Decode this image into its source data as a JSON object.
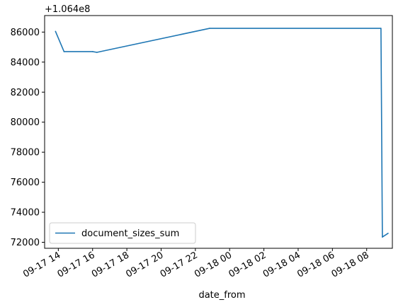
{
  "chart_data": {
    "type": "line",
    "title": "",
    "xlabel": "date_from",
    "ylabel": "",
    "offset_text": "+1.064e8",
    "offset_value": 106400000,
    "legend_position": "lower-left",
    "grid": false,
    "line_color": "#1f77b4",
    "x_range": [
      "2023-09-17 13:12",
      "2023-09-18 09:30"
    ],
    "ylim": [
      71600,
      87100
    ],
    "x_ticks": [
      {
        "t": "2023-09-17 14:00",
        "label": "09-17 14"
      },
      {
        "t": "2023-09-17 16:00",
        "label": "09-17 16"
      },
      {
        "t": "2023-09-17 18:00",
        "label": "09-17 18"
      },
      {
        "t": "2023-09-17 20:00",
        "label": "09-17 20"
      },
      {
        "t": "2023-09-17 22:00",
        "label": "09-17 22"
      },
      {
        "t": "2023-09-18 00:00",
        "label": "09-18 00"
      },
      {
        "t": "2023-09-18 02:00",
        "label": "09-18 02"
      },
      {
        "t": "2023-09-18 04:00",
        "label": "09-18 04"
      },
      {
        "t": "2023-09-18 06:00",
        "label": "09-18 06"
      },
      {
        "t": "2023-09-18 08:00",
        "label": "09-18 08"
      }
    ],
    "y_ticks": [
      {
        "v": 72000,
        "label": "72000"
      },
      {
        "v": 74000,
        "label": "74000"
      },
      {
        "v": 76000,
        "label": "76000"
      },
      {
        "v": 78000,
        "label": "78000"
      },
      {
        "v": 80000,
        "label": "80000"
      },
      {
        "v": 82000,
        "label": "82000"
      },
      {
        "v": 84000,
        "label": "84000"
      },
      {
        "v": 86000,
        "label": "86000"
      }
    ],
    "series": [
      {
        "name": "document_sizes_sum",
        "points": [
          {
            "x": "2023-09-17 13:50",
            "y": 86050
          },
          {
            "x": "2023-09-17 14:20",
            "y": 84700
          },
          {
            "x": "2023-09-17 16:00",
            "y": 84700
          },
          {
            "x": "2023-09-17 16:15",
            "y": 84650
          },
          {
            "x": "2023-09-17 22:50",
            "y": 86250
          },
          {
            "x": "2023-09-18 08:50",
            "y": 86250
          },
          {
            "x": "2023-09-18 08:55",
            "y": 72350
          },
          {
            "x": "2023-09-18 09:15",
            "y": 72600
          }
        ]
      }
    ]
  }
}
